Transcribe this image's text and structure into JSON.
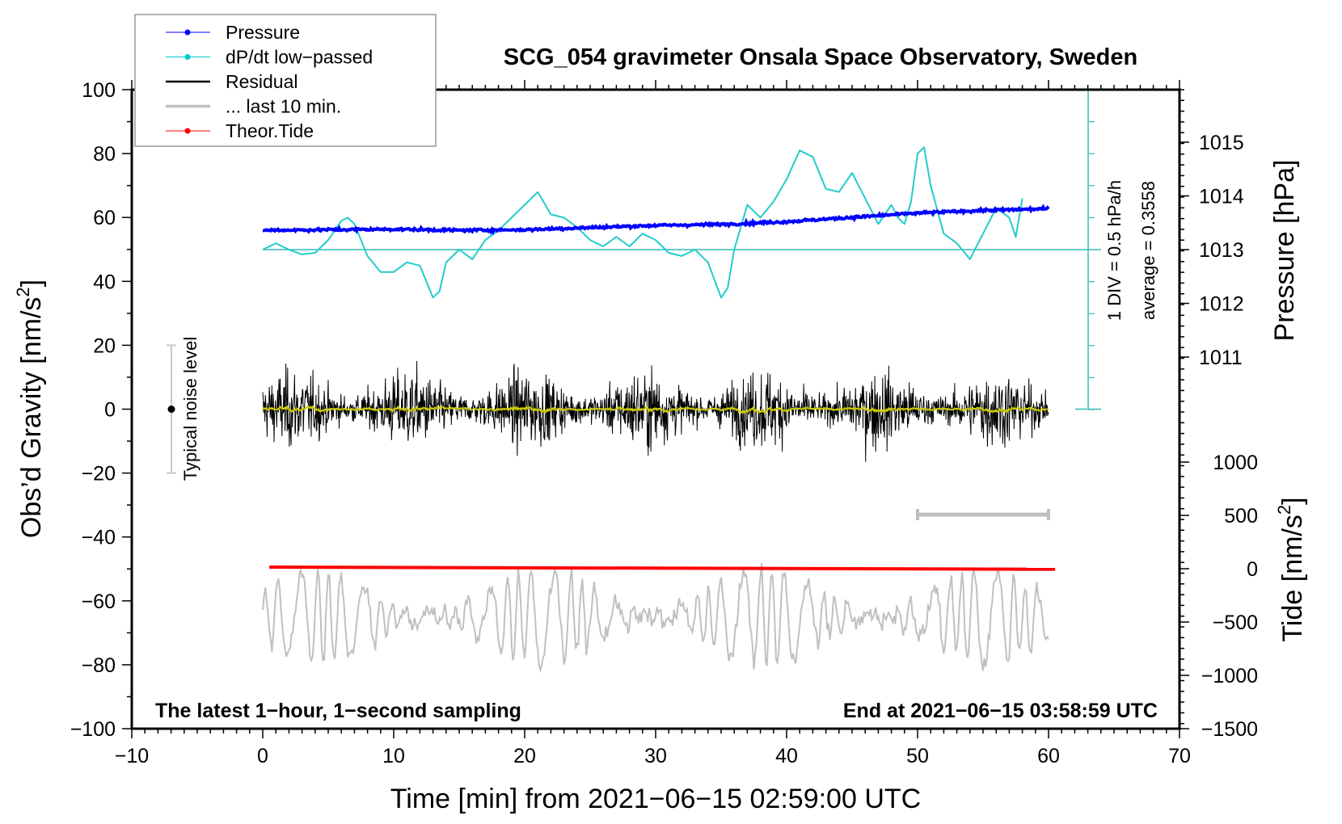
{
  "chart_data": {
    "type": "line",
    "title": "SCG_054 gravimeter Onsala Space Observatory, Sweden",
    "xlabel": "Time [min] from 2021−06−15 02:59:00 UTC",
    "ylabel_left": "Obs’d Gravity [nm/s",
    "ylabel_left_sup": "2",
    "ylabel_left_end": "]",
    "ylabel_right_pressure": "Pressure [hPa]",
    "ylabel_right_tide": "Tide [nm/s",
    "ylabel_right_tide_sup": "2",
    "ylabel_right_tide_end": "]",
    "xlim": [
      -10,
      70
    ],
    "ylim": [
      -100,
      100
    ],
    "x_ticks": [
      "−10",
      "0",
      "10",
      "20",
      "30",
      "40",
      "50",
      "60",
      "70"
    ],
    "y_ticks": [
      "100",
      "80",
      "60",
      "40",
      "20",
      "0",
      "−20",
      "−40",
      "−60",
      "−80",
      "−100"
    ],
    "pressure_ticks": [
      "1015",
      "1014",
      "1013",
      "1012",
      "1011"
    ],
    "tide_ticks": [
      "1000",
      "500",
      "0",
      "−500",
      "−1000",
      "−1500"
    ],
    "legend": {
      "placement": "top-left",
      "entries": [
        {
          "label": "Pressure",
          "color": "#0000ff"
        },
        {
          "label": "dP/dt low−passed",
          "color": "#00cccc"
        },
        {
          "label": "Residual",
          "color": "#000000"
        },
        {
          "label": "... last 10 min.",
          "color": "#c0c0c0"
        },
        {
          "label": "Theor.Tide",
          "color": "#ff0000"
        }
      ]
    },
    "annotations": {
      "noise_label": "Typical noise level",
      "noise_range": [
        -20,
        20
      ],
      "div_label": "1 DIV = 0.5 hPa/h",
      "average_label": "average = 0.3558",
      "bottom_left": "The latest 1−hour, 1−second sampling",
      "bottom_right": "End at 2021−06−15 03:58:59 UTC",
      "last10_bar_minutes": [
        50,
        60
      ]
    },
    "pressure_hpa": {
      "x": [
        0,
        5,
        10,
        15,
        20,
        25,
        30,
        35,
        40,
        45,
        50,
        55,
        60
      ],
      "y": [
        1013.36,
        1013.37,
        1013.38,
        1013.36,
        1013.37,
        1013.41,
        1013.45,
        1013.47,
        1013.52,
        1013.6,
        1013.68,
        1013.73,
        1013.76
      ]
    },
    "dpdt_divisions": {
      "average_hpa_per_h": 0.3558,
      "hpa_per_div": 0.5,
      "x": [
        0,
        1,
        2,
        3,
        4,
        5,
        6,
        6.5,
        7,
        8,
        9,
        10,
        11,
        12,
        12.5,
        13,
        13.5,
        14,
        15,
        16,
        17,
        18,
        19,
        20,
        21,
        22,
        23,
        24,
        25,
        26,
        27,
        28,
        29,
        30,
        31,
        32,
        33,
        34,
        35,
        35.5,
        36,
        37,
        38,
        39,
        40,
        41,
        42,
        43,
        44,
        45,
        46,
        47,
        48,
        48.5,
        49,
        49.5,
        50,
        50.5,
        51,
        52,
        53,
        54,
        55,
        56,
        57,
        57.5,
        58
      ],
      "y": [
        0,
        0.2,
        0,
        -0.15,
        -0.1,
        0.3,
        0.9,
        1.0,
        0.8,
        -0.2,
        -0.7,
        -0.7,
        -0.4,
        -0.5,
        -1.0,
        -1.5,
        -1.3,
        -0.4,
        0,
        -0.3,
        0.3,
        0.6,
        1.0,
        1.4,
        1.8,
        1.1,
        1.0,
        0.7,
        0.3,
        0.1,
        0.4,
        0.1,
        0.5,
        0.3,
        -0.1,
        -0.2,
        0,
        -0.4,
        -1.5,
        -1.2,
        0,
        1.4,
        1.0,
        1.5,
        2.2,
        3.1,
        2.9,
        1.9,
        1.8,
        2.4,
        1.6,
        0.8,
        1.4,
        1.0,
        0.8,
        1.5,
        3.0,
        3.2,
        2.0,
        0.5,
        0.2,
        -0.3,
        0.5,
        1.3,
        1.0,
        0.4,
        1.6
      ]
    },
    "residual_nm_s2": {
      "x_range": [
        0,
        60
      ],
      "std": 5.0,
      "peak": 20
    },
    "residual_smoothed_color": "#cccc00",
    "last10_display": {
      "offset": -65,
      "amplitude": 15,
      "x_range": [
        0,
        60
      ]
    },
    "theor_tide_nm_s2": {
      "x": [
        0.5,
        60.5
      ],
      "y": [
        15,
        -5
      ]
    }
  }
}
